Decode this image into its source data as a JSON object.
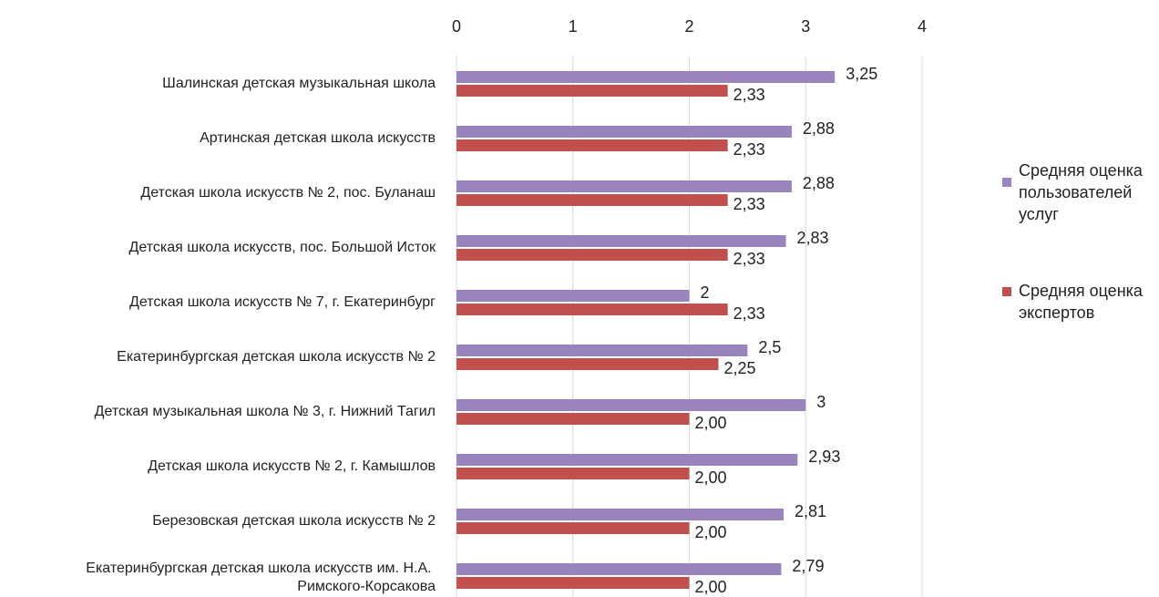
{
  "chart_data": {
    "type": "bar",
    "orientation": "horizontal",
    "categories": [
      "Шалинская детская музыкальная школа",
      "Артинская детская школа искусств",
      "Детская школа искусств № 2, пос. Буланаш",
      "Детская школа искусств, пос. Большой Исток",
      "Детская школа искусств № 7, г. Екатеринбург",
      "Екатеринбургская детская школа искусств № 2",
      "Детская музыкальная школа № 3, г. Нижний Тагил",
      "Детская школа искусств № 2, г. Камышлов",
      "Березовская детская школа искусств № 2",
      "Екатеринбургская детская школа искусств им. Н.А. Римского-Корсакова"
    ],
    "series": [
      {
        "name": "Средняя оценка пользователей услуг",
        "color": "#9a84bd",
        "values": [
          3.25,
          2.88,
          2.88,
          2.83,
          2,
          2.5,
          3,
          2.93,
          2.81,
          2.79
        ],
        "value_labels": [
          "3,25",
          "2,88",
          "2,88",
          "2,83",
          "2",
          "2,5",
          "3",
          "2,93",
          "2,81",
          "2,79"
        ]
      },
      {
        "name": "Средняя оценка экспертов",
        "color": "#c0504d",
        "values": [
          2.33,
          2.33,
          2.33,
          2.33,
          2.33,
          2.25,
          2.0,
          2.0,
          2.0,
          2.0
        ],
        "value_labels": [
          "2,33",
          "2,33",
          "2,33",
          "2,33",
          "2,33",
          "2,25",
          "2,00",
          "2,00",
          "2,00",
          "2,00"
        ]
      }
    ],
    "xlim": [
      0,
      4
    ],
    "xticks": [
      0,
      1,
      2,
      3,
      4
    ],
    "grid": true,
    "legend": "right"
  }
}
